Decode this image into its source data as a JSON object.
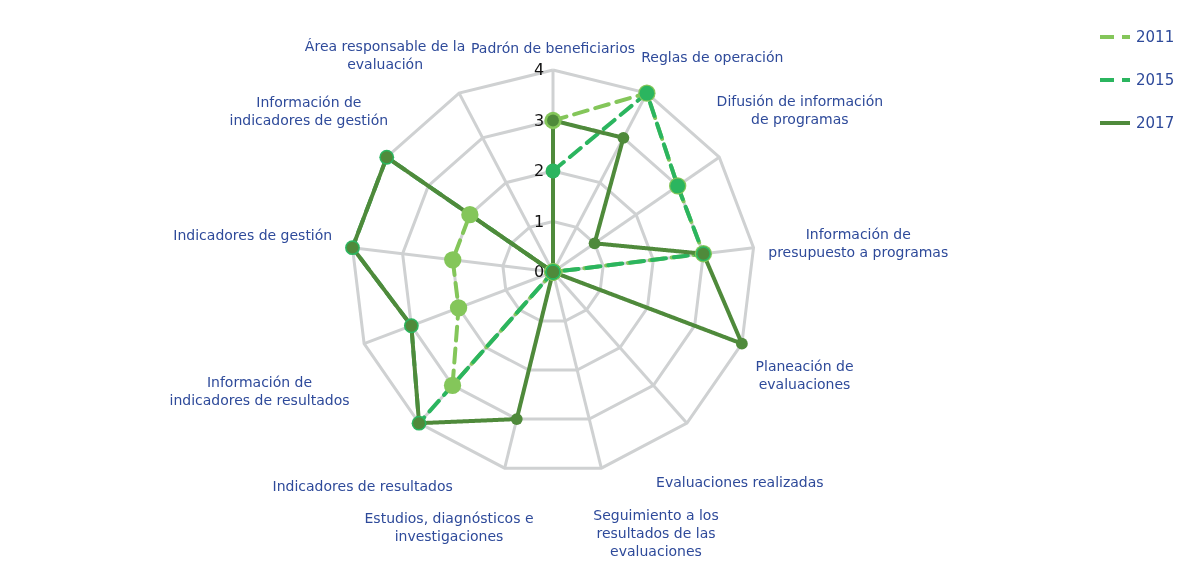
{
  "chart_data": {
    "type": "radar",
    "categories": [
      "Padrón de beneficiarios",
      "Reglas de operación",
      "Difusión de información de programas",
      "Información de presupuesto a programas",
      "Planeación de evaluaciones",
      "Evaluaciones realizadas",
      "Seguimiento a los resultados de las evaluaciones",
      "Estudios, diagnósticos e investigaciones",
      "Indicadores de resultados",
      "Información de indicadores de resultados",
      "Indicadores de gestión",
      "Información de indicadores de gestión",
      "Área responsable de la evaluación"
    ],
    "series": [
      {
        "name": "2011",
        "color": "#84c65a",
        "line_style": "dashed",
        "values": [
          3,
          4,
          3,
          3,
          0,
          0,
          0,
          0,
          3,
          2,
          2,
          2,
          0
        ]
      },
      {
        "name": "2015",
        "color": "#2bb55f",
        "line_style": "dashed",
        "values": [
          2,
          4,
          3,
          3,
          0,
          0,
          0,
          0,
          4,
          3,
          4,
          4,
          0
        ]
      },
      {
        "name": "2017",
        "color": "#4f8a3b",
        "line_style": "solid",
        "values": [
          3,
          3,
          1,
          3,
          4,
          0,
          0,
          3,
          4,
          3,
          4,
          4,
          0
        ]
      }
    ],
    "ylim": [
      0,
      4
    ],
    "yticks": [
      0,
      1,
      2,
      3,
      4
    ],
    "grid": true,
    "legend": "top right",
    "marker": "circle"
  }
}
